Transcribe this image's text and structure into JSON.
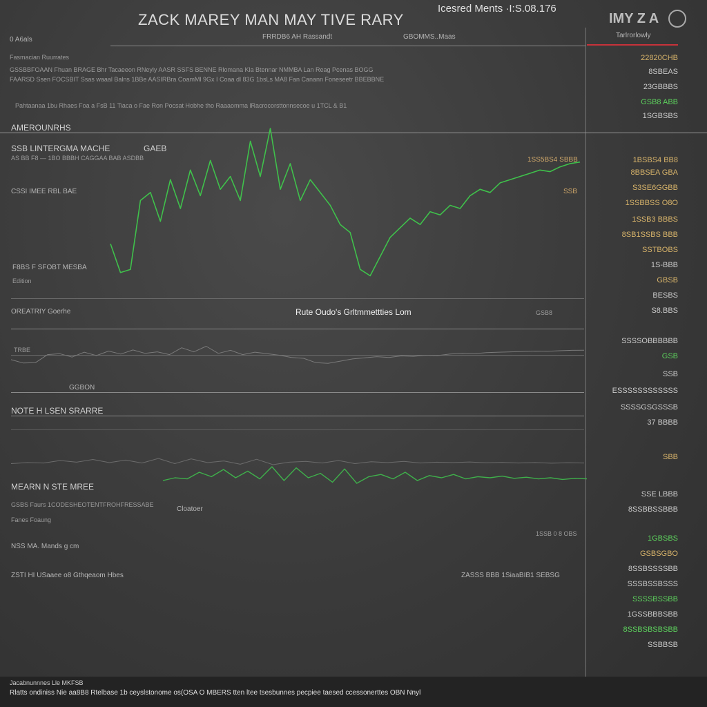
{
  "header": {
    "title": "ZACK MAREY MAN MAY TIVE RARY",
    "ticker": "Icesred Ments ·I:S.08.176",
    "logo": "IMY Z A",
    "sub_left": "0 A6als",
    "sub_left2": "Fasmacian Ruurrates",
    "red_tab": "FRRDB6 AH Rassandt",
    "mid_tab": "GBOMMS..Maas",
    "right_tab": "Tarlrorlowly"
  },
  "info_lines": [
    "GSSBBFOAAN Fhuan BRAGE Bhr Tacaeeon RNeyly AASR SSFS BENNE Rlomana Kla Btennar NMMBA Lan Reag Pcenas BOGG",
    "FAARSD Ssen FOCSBIT Ssas waaal Balns 1BBe AASIRBra CoamMl 9Gx I Coaa dl 83G 1bsLs MA8 Fan Canann Foneseetr BBEBBNE"
  ],
  "info_line3": "Pahtaanaa 1bu Rhaes Foa a FsB 11 Tiaca o Fae Ron Pocsat Hobhe tho Raaaomma lRacrocorsttonnsecoe u 1TCL & B1",
  "sections": {
    "s1": "AMEROUNRHS",
    "s2_title": "SSB LINTERGMA MACHE",
    "s2_val": "GAEB",
    "s2_sub": "AS BB F8 — 1BO BBBH CAGGAA BAB ASDBB",
    "s3": "CSSI IMEE RBL BAE",
    "s4": "F8BS F SFOBT MESBA",
    "s4_sub": "Edition",
    "s5": "OREATRIY Goerhe",
    "center_label": "Rute Oudo's Grltmmettties Lom",
    "s6": "TRBE",
    "s7": "GGBON",
    "s8": "NOTE H LSEN SRARRE",
    "s9": "MEARN N STE MREE",
    "s9_sub": "GSBS Faurs 1CODESHEOTENTFROHFRESSABE",
    "s9_sub2": "Fanes Foaung",
    "s9_mid": "Cloatoer",
    "s10": "NSS MA. Mands g cm",
    "s11": "ZSTI HI USaaee o8 Gthqeaom Hbes",
    "s11_right": "ZASSS BBB 1SiaaBIB1 SEBSG",
    "rstrip1": "1SSB 0 8 OBS",
    "rstrip2": "GSB8",
    "footer1": "Jacabnunnnes Lle MKFSB",
    "footer2": "Rlatts ondiniss Nie aa8B8 Rtelbase 1b ceyslstonome os(OSA O MBERS tten ltee tsesbunnes pecpiee taesed ccessonerttes OBN Nnyl"
  },
  "right_values": [
    {
      "v": "22820CHB",
      "c": "amber"
    },
    {
      "v": "8SBEAS",
      "c": "white"
    },
    {
      "v": "23GBBBS",
      "c": "white"
    },
    {
      "v": "GSB8 ABB",
      "c": "green"
    },
    {
      "v": "1SGBSBS",
      "c": "white"
    },
    {
      "v": "1BSBS4 BB8",
      "c": "amber"
    },
    {
      "v": "8BBSEA GBA",
      "c": "amber"
    },
    {
      "v": "S3SE6GGBB",
      "c": "amber"
    },
    {
      "v": "1SSBBSS O8O",
      "c": "amber"
    },
    {
      "v": "1SSB3 BBBS",
      "c": "amber"
    },
    {
      "v": "8SB1SSBS BBB",
      "c": "amber"
    },
    {
      "v": "SSTBOBS",
      "c": "amber"
    },
    {
      "v": "1S-BBB",
      "c": "white"
    },
    {
      "v": "GBSB",
      "c": "amber"
    },
    {
      "v": "BESBS",
      "c": "white"
    },
    {
      "v": "S8.BBS",
      "c": "white"
    },
    {
      "v": "SSSSOBBBBBB",
      "c": "white"
    },
    {
      "v": "GSB",
      "c": "green"
    },
    {
      "v": "SSB",
      "c": "white"
    },
    {
      "v": "ESSSSSSSSSSSS",
      "c": "white"
    },
    {
      "v": "SSSSGSGSSSB",
      "c": "white"
    },
    {
      "v": "37 BBBB",
      "c": "white"
    },
    {
      "v": "SBB",
      "c": "amber"
    },
    {
      "v": "SSE LBBB",
      "c": "white"
    },
    {
      "v": "8SSBBSSBBB",
      "c": "white"
    },
    {
      "v": "1GBSBS",
      "c": "green"
    },
    {
      "v": "GSBSGBO",
      "c": "amber"
    },
    {
      "v": "8SSBSSSSBB",
      "c": "white"
    },
    {
      "v": "SSSBSSBSSS",
      "c": "white"
    },
    {
      "v": "SSSSBSSBB",
      "c": "green"
    },
    {
      "v": "1GSSBBBSBB",
      "c": "white"
    },
    {
      "v": "8SSBSBSBSBB",
      "c": "green"
    },
    {
      "v": "SSBBSB",
      "c": "white"
    }
  ],
  "mid_right_labels": [
    "1SS5BS4 SBBB",
    "SSB"
  ],
  "chart_data": {
    "type": "line",
    "series": [
      {
        "values": [
          0.28,
          0.1,
          0.12,
          0.55,
          0.6,
          0.42,
          0.68,
          0.5,
          0.74,
          0.58,
          0.8,
          0.62,
          0.7,
          0.55,
          0.92,
          0.7,
          1.0,
          0.62,
          0.78,
          0.55,
          0.68,
          0.6,
          0.52,
          0.4,
          0.35,
          0.12,
          0.08,
          0.2,
          0.32,
          0.38,
          0.44,
          0.4,
          0.48,
          0.46,
          0.52,
          0.5,
          0.58,
          0.62,
          0.6,
          0.66,
          0.68,
          0.7,
          0.72,
          0.74,
          0.73,
          0.76,
          0.78,
          0.79
        ]
      },
      {
        "values": [
          0.55,
          0.6,
          0.58,
          0.7,
          0.62,
          0.75,
          0.6,
          0.72,
          0.58,
          0.8,
          0.55,
          0.78,
          0.6,
          0.68,
          0.52,
          0.76,
          0.5,
          0.62,
          0.66,
          0.58,
          0.7,
          0.55,
          0.64,
          0.6,
          0.66,
          0.58,
          0.62,
          0.6,
          0.63,
          0.59,
          0.61,
          0.58,
          0.6,
          0.57,
          0.59,
          0.58
        ]
      }
    ]
  }
}
